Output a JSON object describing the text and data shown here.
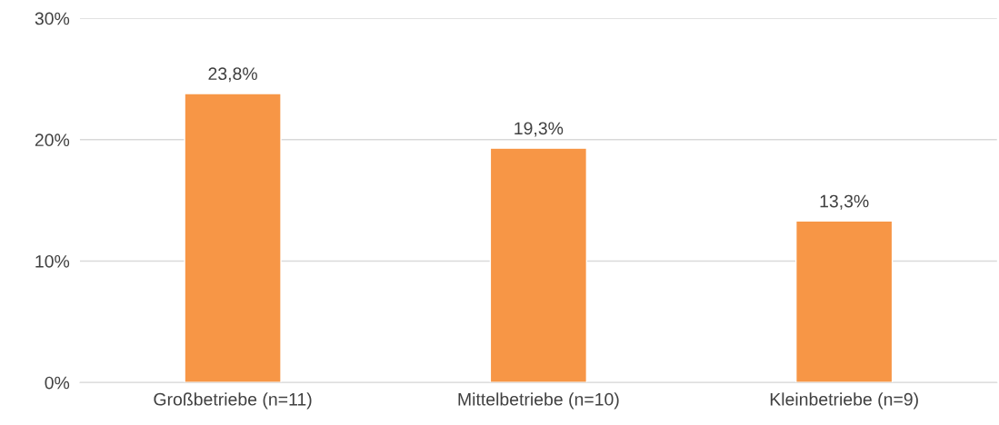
{
  "chart_data": {
    "type": "bar",
    "categories": [
      "Großbetriebe (n=11)",
      "Mittelbetriebe (n=10)",
      "Kleinbetriebe (n=9)"
    ],
    "values": [
      23.8,
      19.3,
      13.3
    ],
    "value_labels": [
      "23,8%",
      "19,3%",
      "13,3%"
    ],
    "color": "#f79646",
    "ylim": [
      0,
      30
    ],
    "yticks": [
      {
        "value": 0,
        "label": "0%"
      },
      {
        "value": 10,
        "label": "10%"
      },
      {
        "value": 20,
        "label": "20%"
      },
      {
        "value": 30,
        "label": "30%"
      }
    ],
    "grid": "y",
    "legend": false
  }
}
